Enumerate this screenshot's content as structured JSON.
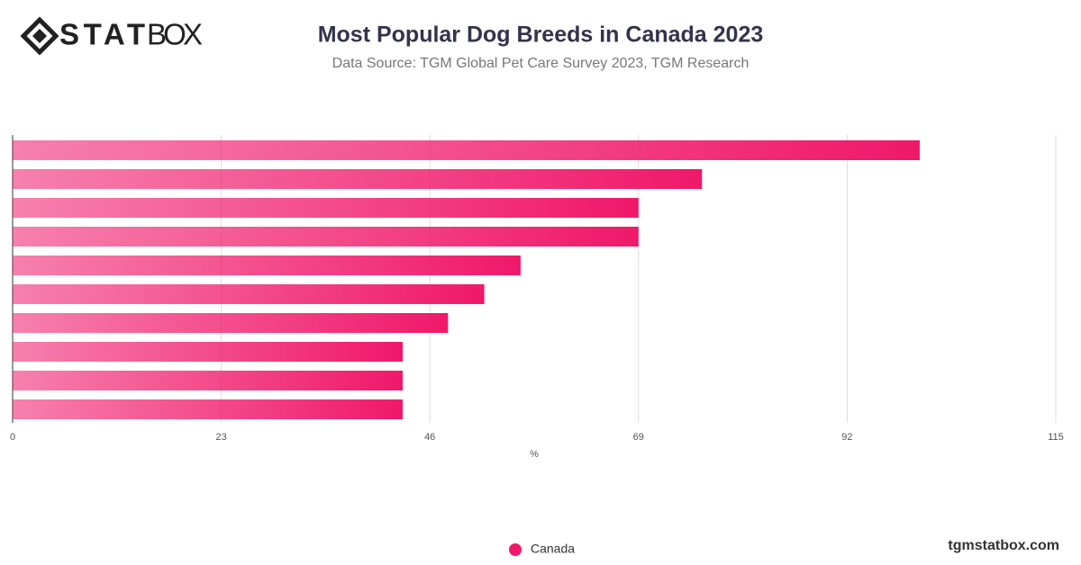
{
  "logo": {
    "bold": "STAT",
    "light": "BOX"
  },
  "footer": "tgmstatbox.com",
  "chart_data": {
    "type": "hbar",
    "title": "Most Popular Dog Breeds in Canada 2023",
    "subtitle": "Data Source: TGM Global Pet Care Survey 2023, TGM Research",
    "x_label": "%",
    "categories": [
      null,
      null,
      null,
      null,
      null,
      null,
      null,
      null,
      null,
      null
    ],
    "series": [
      {
        "name": "Canada",
        "color": "#f0186a",
        "values": [
          100,
          76,
          69,
          69,
          56,
          52,
          48,
          43,
          43,
          43
        ]
      }
    ],
    "xlim": [
      0,
      115
    ],
    "xticks": [
      0,
      23,
      46,
      69,
      92,
      115
    ],
    "grid": true,
    "legend": "bottom"
  }
}
